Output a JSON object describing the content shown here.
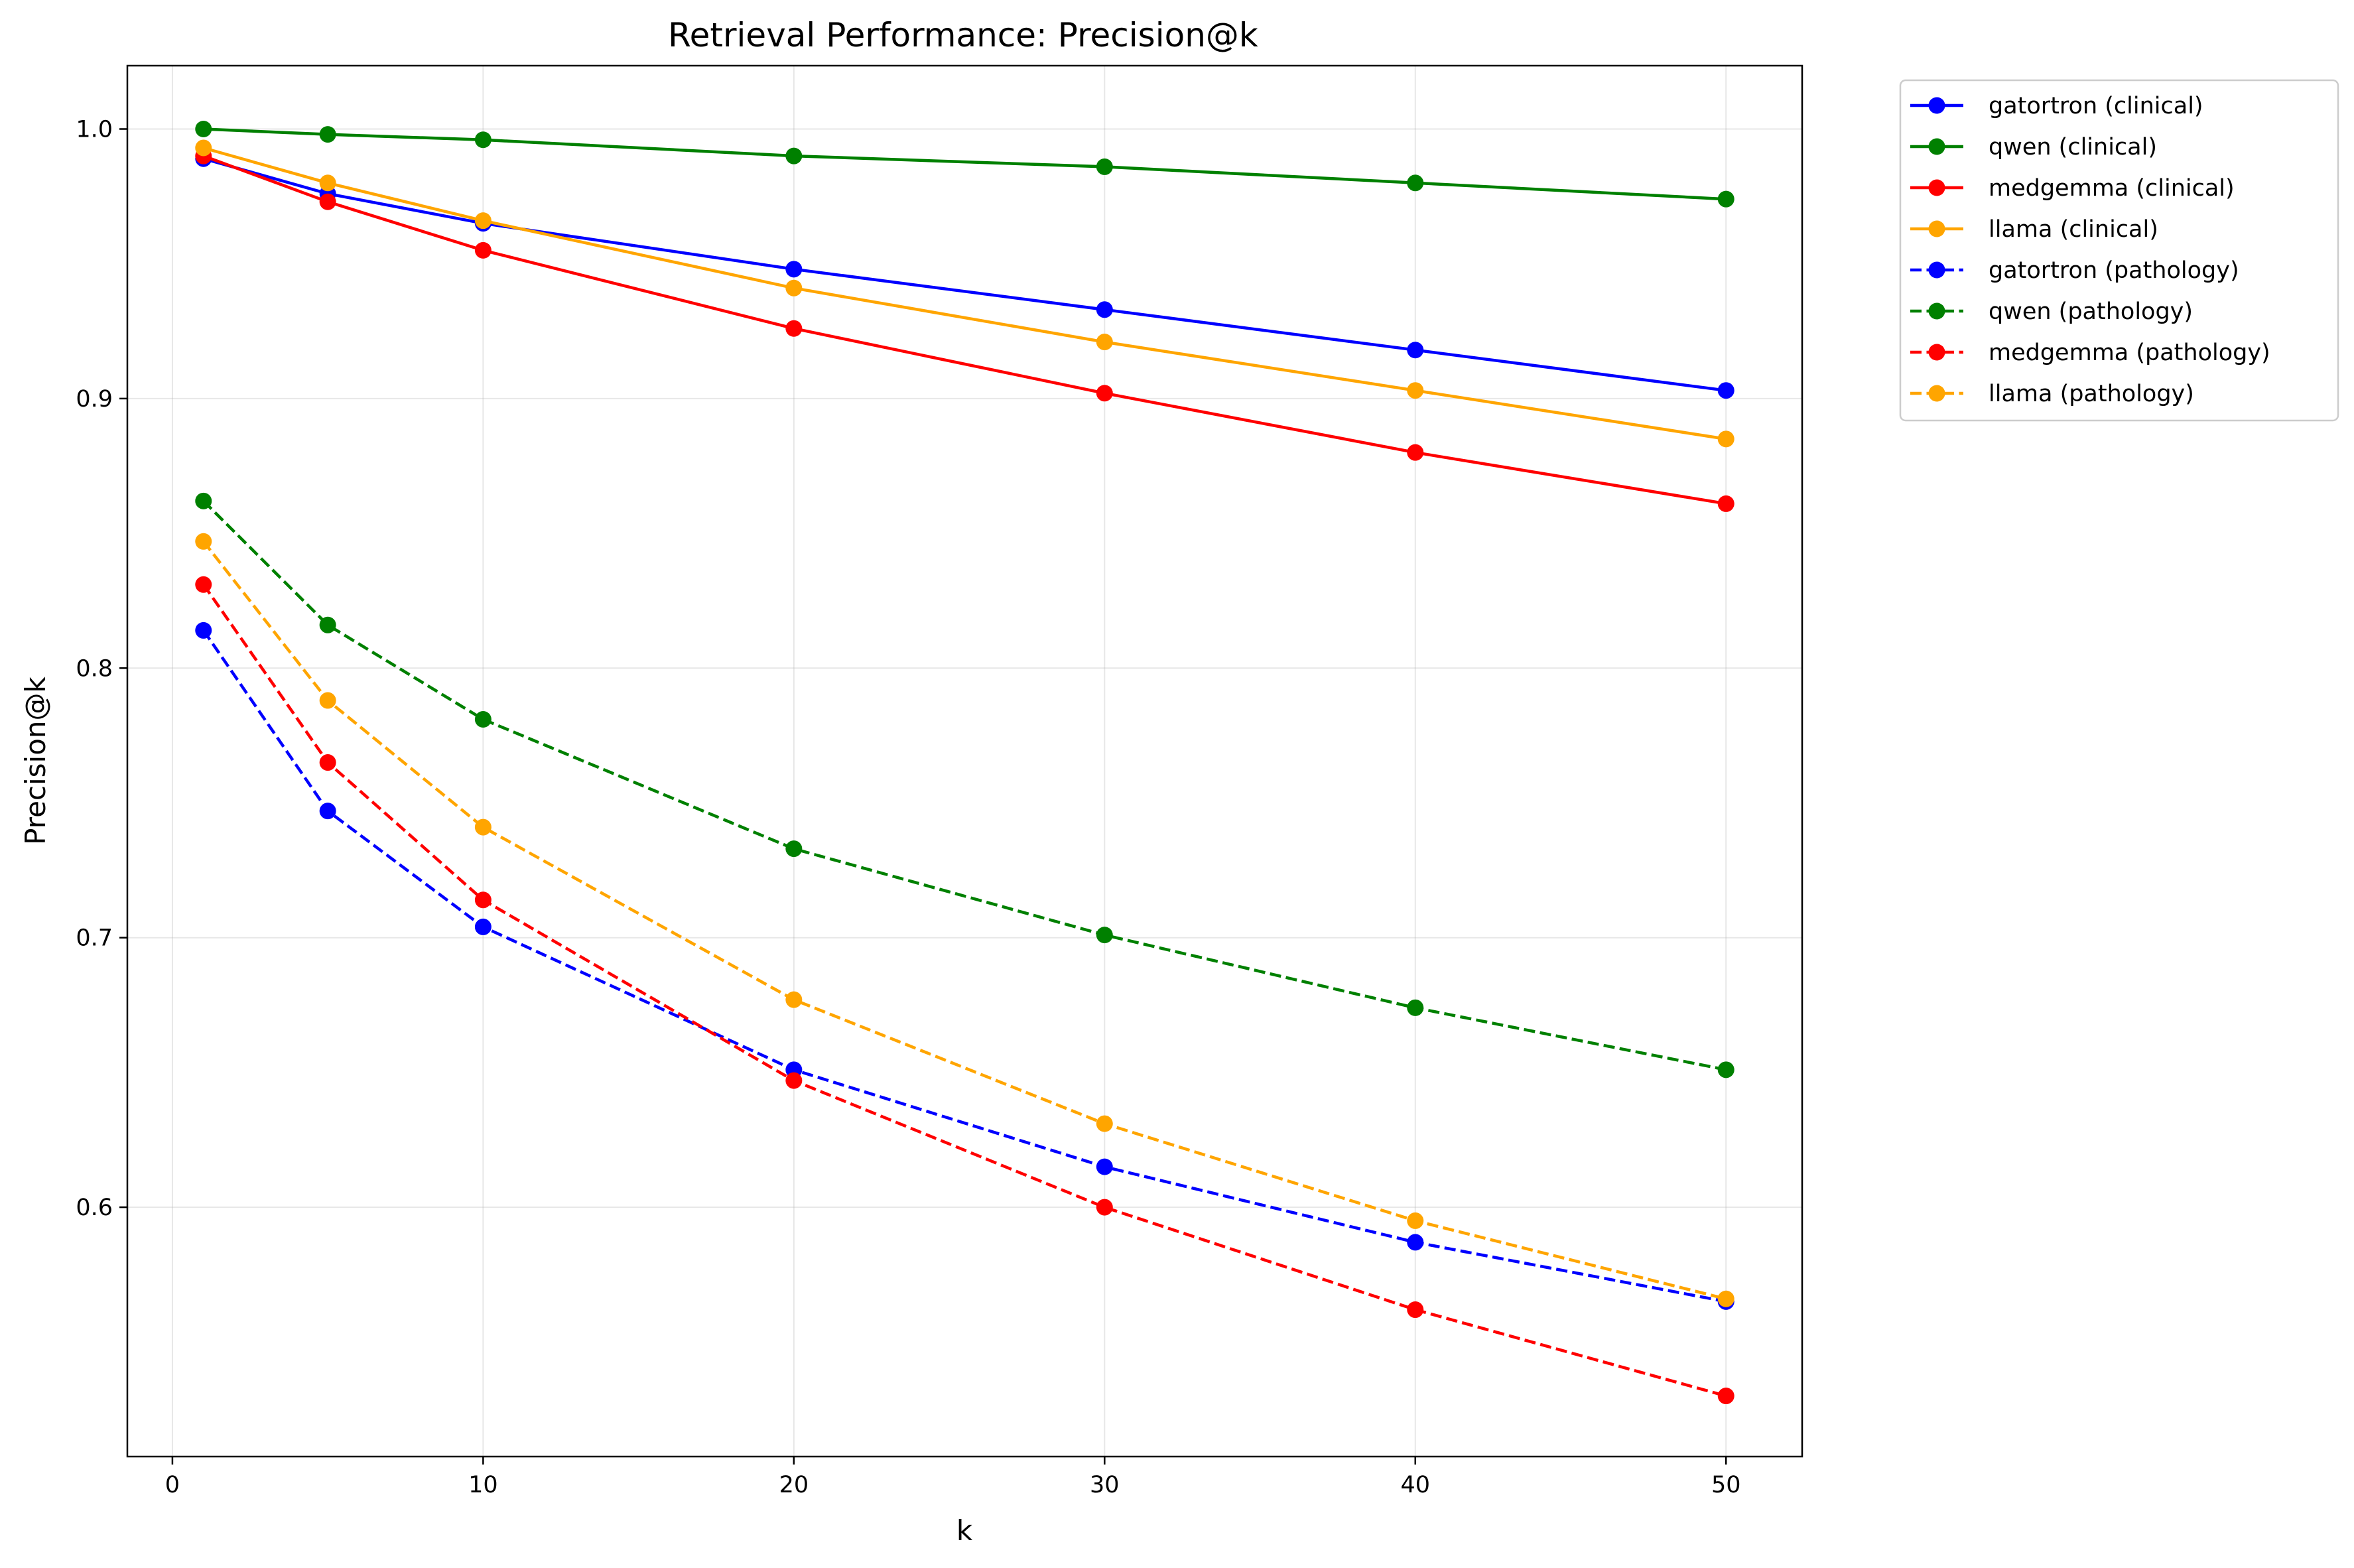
{
  "chart_data": {
    "type": "line",
    "title": "Retrieval Performance: Precision@k",
    "xlabel": "k",
    "ylabel": "Precision@k",
    "x": [
      1,
      5,
      10,
      20,
      30,
      40,
      50
    ],
    "xlim": [
      -1.45,
      52.45
    ],
    "ylim": [
      0.5075,
      1.0235
    ],
    "xticks": [
      0,
      10,
      20,
      30,
      40,
      50
    ],
    "yticks": [
      0.6,
      0.7,
      0.8,
      0.9,
      1.0
    ],
    "xtick_labels": [
      "0",
      "10",
      "20",
      "30",
      "40",
      "50"
    ],
    "ytick_labels": [
      "0.6",
      "0.7",
      "0.8",
      "0.9",
      "1.0"
    ],
    "grid": true,
    "legend_position": "outside-top-right",
    "series": [
      {
        "name": "gatortron (clinical)",
        "color": "#0000ff",
        "dash": "solid",
        "values": [
          0.989,
          0.976,
          0.965,
          0.948,
          0.933,
          0.918,
          0.903
        ]
      },
      {
        "name": "qwen (clinical)",
        "color": "#008000",
        "dash": "solid",
        "values": [
          1.0,
          0.998,
          0.996,
          0.99,
          0.986,
          0.98,
          0.974
        ]
      },
      {
        "name": "medgemma (clinical)",
        "color": "#ff0000",
        "dash": "solid",
        "values": [
          0.99,
          0.973,
          0.955,
          0.926,
          0.902,
          0.88,
          0.861
        ]
      },
      {
        "name": "llama (clinical)",
        "color": "#ffa500",
        "dash": "solid",
        "values": [
          0.993,
          0.98,
          0.966,
          0.941,
          0.921,
          0.903,
          0.885
        ]
      },
      {
        "name": "gatortron (pathology)",
        "color": "#0000ff",
        "dash": "dashed",
        "values": [
          0.814,
          0.747,
          0.704,
          0.651,
          0.615,
          0.587,
          0.565
        ]
      },
      {
        "name": "qwen (pathology)",
        "color": "#008000",
        "dash": "dashed",
        "values": [
          0.862,
          0.816,
          0.781,
          0.733,
          0.701,
          0.674,
          0.651
        ]
      },
      {
        "name": "medgemma (pathology)",
        "color": "#ff0000",
        "dash": "dashed",
        "values": [
          0.831,
          0.765,
          0.714,
          0.647,
          0.6,
          0.562,
          0.53
        ]
      },
      {
        "name": "llama (pathology)",
        "color": "#ffa500",
        "dash": "dashed",
        "values": [
          0.847,
          0.788,
          0.741,
          0.677,
          0.631,
          0.595,
          0.566
        ]
      }
    ]
  }
}
